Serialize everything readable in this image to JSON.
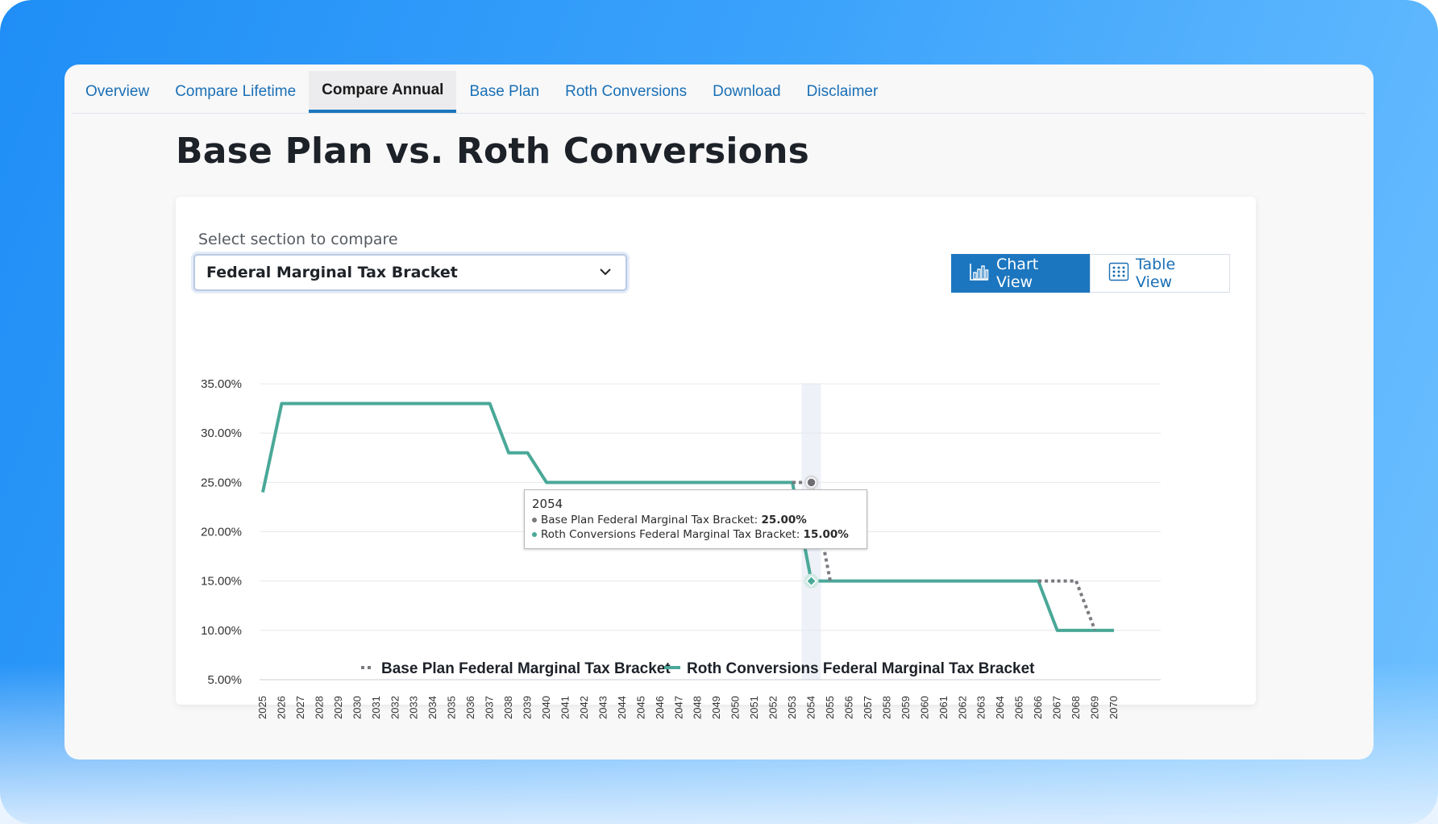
{
  "tabs": [
    {
      "label": "Overview",
      "active": false
    },
    {
      "label": "Compare Lifetime",
      "active": false
    },
    {
      "label": "Compare Annual",
      "active": true
    },
    {
      "label": "Base Plan",
      "active": false
    },
    {
      "label": "Roth Conversions",
      "active": false
    },
    {
      "label": "Download",
      "active": false
    },
    {
      "label": "Disclaimer",
      "active": false
    }
  ],
  "page_title": "Base Plan vs. Roth Conversions",
  "compare": {
    "label": "Select section to compare",
    "selected": "Federal Marginal Tax Bracket"
  },
  "view_toggle": {
    "chart_label": "Chart View",
    "table_label": "Table View",
    "active": "chart"
  },
  "tooltip": {
    "year": "2054",
    "base_label": "Base Plan Federal Marginal Tax Bracket:",
    "base_value": "25.00%",
    "roth_label": "Roth Conversions Federal Marginal Tax Bracket:",
    "roth_value": "15.00%"
  },
  "colors": {
    "base": "#7a7a80",
    "roth": "#4aa898",
    "accent": "#1c76bf"
  },
  "chart_data": {
    "type": "line",
    "x": [
      2025,
      2026,
      2027,
      2028,
      2029,
      2030,
      2031,
      2032,
      2033,
      2034,
      2035,
      2036,
      2037,
      2038,
      2039,
      2040,
      2041,
      2042,
      2043,
      2044,
      2045,
      2046,
      2047,
      2048,
      2049,
      2050,
      2051,
      2052,
      2053,
      2054,
      2055,
      2056,
      2057,
      2058,
      2059,
      2060,
      2061,
      2062,
      2063,
      2064,
      2065,
      2066,
      2067,
      2068,
      2069,
      2070
    ],
    "series": [
      {
        "name": "Base Plan Federal Marginal Tax Bracket",
        "style": "dotted",
        "values": [
          24,
          33,
          33,
          33,
          33,
          33,
          33,
          33,
          33,
          33,
          33,
          33,
          33,
          28,
          28,
          25,
          25,
          25,
          25,
          25,
          25,
          25,
          25,
          25,
          25,
          25,
          25,
          25,
          25,
          25,
          15,
          15,
          15,
          15,
          15,
          15,
          15,
          15,
          15,
          15,
          15,
          15,
          15,
          15,
          10,
          10
        ]
      },
      {
        "name": "Roth Conversions Federal Marginal Tax Bracket",
        "style": "solid",
        "values": [
          24,
          33,
          33,
          33,
          33,
          33,
          33,
          33,
          33,
          33,
          33,
          33,
          33,
          28,
          28,
          25,
          25,
          25,
          25,
          25,
          25,
          25,
          25,
          25,
          25,
          25,
          25,
          25,
          25,
          15,
          15,
          15,
          15,
          15,
          15,
          15,
          15,
          15,
          15,
          15,
          15,
          15,
          10,
          10,
          10,
          10
        ]
      }
    ],
    "y_ticks": [
      "35.00%",
      "30.00%",
      "25.00%",
      "20.00%",
      "15.00%",
      "10.00%",
      "5.00%"
    ],
    "ylim": [
      5,
      35
    ],
    "highlight_x": 2054,
    "grid": true,
    "legend": "bottom"
  }
}
